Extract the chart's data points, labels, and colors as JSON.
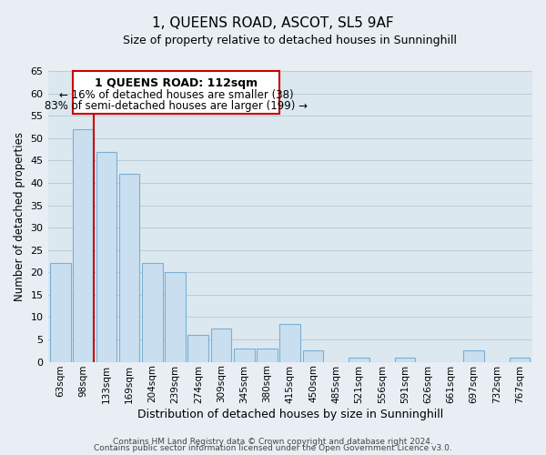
{
  "title": "1, QUEENS ROAD, ASCOT, SL5 9AF",
  "subtitle": "Size of property relative to detached houses in Sunninghill",
  "xlabel": "Distribution of detached houses by size in Sunninghill",
  "ylabel": "Number of detached properties",
  "bar_labels": [
    "63sqm",
    "98sqm",
    "133sqm",
    "169sqm",
    "204sqm",
    "239sqm",
    "274sqm",
    "309sqm",
    "345sqm",
    "380sqm",
    "415sqm",
    "450sqm",
    "485sqm",
    "521sqm",
    "556sqm",
    "591sqm",
    "626sqm",
    "661sqm",
    "697sqm",
    "732sqm",
    "767sqm"
  ],
  "bar_values": [
    22,
    52,
    47,
    42,
    22,
    20,
    6,
    7.5,
    3,
    3,
    8.5,
    2.5,
    0,
    1,
    0,
    1,
    0,
    0,
    2.5,
    0,
    1
  ],
  "bar_color_face": "#c9dff0",
  "bar_color_edge": "#7aafd4",
  "vline_color": "#cc0000",
  "vline_x_bar_index": 1,
  "annotation_title": "1 QUEENS ROAD: 112sqm",
  "annotation_line1": "← 16% of detached houses are smaller (38)",
  "annotation_line2": "83% of semi-detached houses are larger (199) →",
  "annotation_box_facecolor": "#ffffff",
  "annotation_box_edgecolor": "#cc0000",
  "ylim": [
    0,
    65
  ],
  "yticks": [
    0,
    5,
    10,
    15,
    20,
    25,
    30,
    35,
    40,
    45,
    50,
    55,
    60,
    65
  ],
  "footer1": "Contains HM Land Registry data © Crown copyright and database right 2024.",
  "footer2": "Contains public sector information licensed under the Open Government Licence v3.0.",
  "bg_color": "#e8eef4",
  "plot_bg_color": "#dce8f0",
  "grid_color": "#b8cdd8",
  "title_fontsize": 11,
  "subtitle_fontsize": 9,
  "xlabel_fontsize": 9,
  "ylabel_fontsize": 8.5,
  "tick_fontsize": 8,
  "xtick_fontsize": 7.5,
  "annotation_title_fontsize": 9,
  "annotation_text_fontsize": 8.5
}
